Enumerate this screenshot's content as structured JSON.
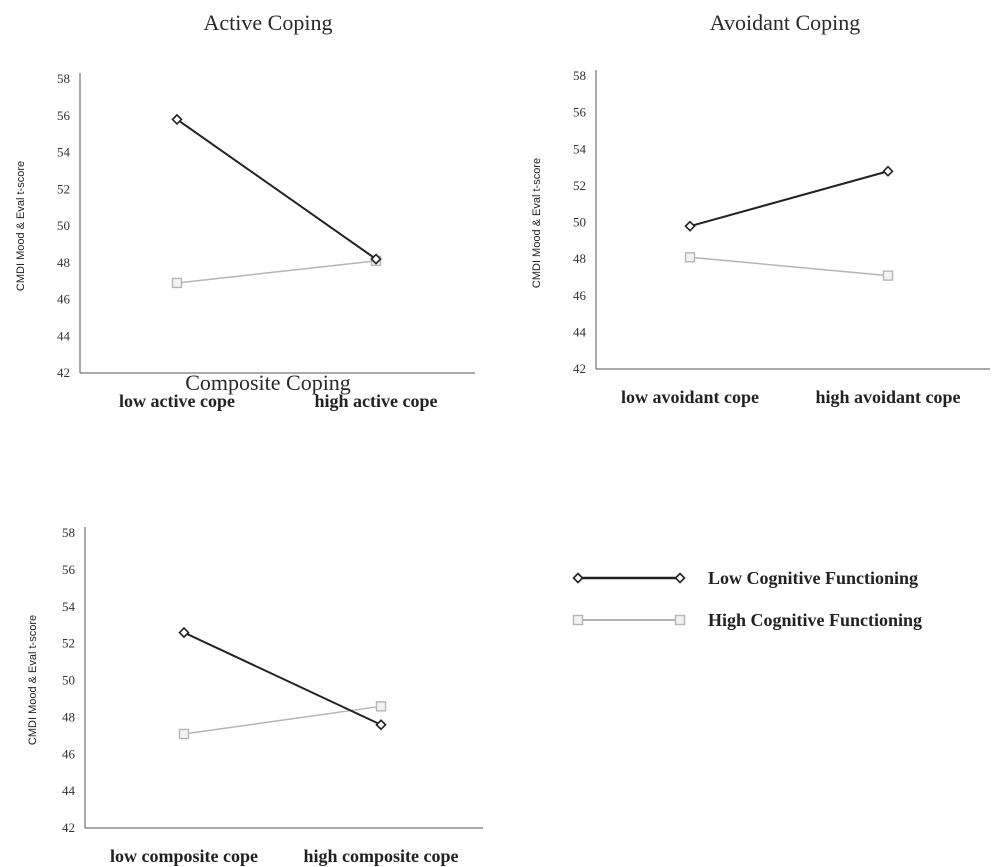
{
  "colors": {
    "low_cognitive": "#222222",
    "high_cognitive": "#b5b5b5",
    "axis": "#555555"
  },
  "legend": {
    "placement": "right",
    "entries": [
      {
        "label": "Low Cognitive Functioning",
        "marker": "diamond"
      },
      {
        "label": "High Cognitive Functioning",
        "marker": "square"
      }
    ]
  },
  "chart_data": [
    {
      "type": "line",
      "title": "Active Coping",
      "xlabel": "",
      "ylabel": "CMDI Mood & Eval t-score",
      "ylim": [
        42,
        58
      ],
      "yticks": [
        "42",
        "44",
        "46",
        "48",
        "50",
        "52",
        "54",
        "56",
        "58"
      ],
      "categories": [
        "low active cope",
        "high active cope"
      ],
      "grid": false,
      "series": [
        {
          "name": "Low Cognitive Functioning",
          "values": [
            55.8,
            48.2
          ]
        },
        {
          "name": "High Cognitive Functioning",
          "values": [
            46.9,
            48.1
          ]
        }
      ]
    },
    {
      "type": "line",
      "title": "Avoidant Coping",
      "xlabel": "",
      "ylabel": "CMDI Mood & Eval t-score",
      "ylim": [
        42,
        58
      ],
      "yticks": [
        "42",
        "44",
        "46",
        "48",
        "50",
        "52",
        "54",
        "56",
        "58"
      ],
      "categories": [
        "low avoidant cope",
        "high avoidant cope"
      ],
      "grid": false,
      "series": [
        {
          "name": "Low Cognitive Functioning",
          "values": [
            49.8,
            52.8
          ]
        },
        {
          "name": "High Cognitive Functioning",
          "values": [
            48.1,
            47.1
          ]
        }
      ]
    },
    {
      "type": "line",
      "title": "Composite Coping",
      "xlabel": "",
      "ylabel": "CMDI Mood & Eval t-score",
      "ylim": [
        42,
        58
      ],
      "yticks": [
        "42",
        "44",
        "46",
        "48",
        "50",
        "52",
        "54",
        "56",
        "58"
      ],
      "categories": [
        "low composite cope",
        "high composite cope"
      ],
      "grid": false,
      "series": [
        {
          "name": "Low Cognitive Functioning",
          "values": [
            52.6,
            47.6
          ]
        },
        {
          "name": "High Cognitive Functioning",
          "values": [
            47.1,
            48.6
          ]
        }
      ]
    }
  ]
}
